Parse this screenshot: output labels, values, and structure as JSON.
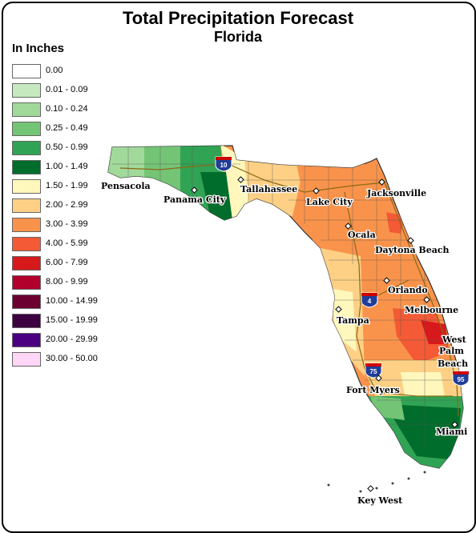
{
  "header": {
    "title": "Total Precipitation Forecast",
    "subtitle": "Florida"
  },
  "legend": {
    "units": "In Inches",
    "items": [
      {
        "label": "0.00",
        "color": "#ffffff"
      },
      {
        "label": "0.01 - 0.09",
        "color": "#c7e9c0"
      },
      {
        "label": "0.10 - 0.24",
        "color": "#a1d99b"
      },
      {
        "label": "0.25 - 0.49",
        "color": "#74c476"
      },
      {
        "label": "0.50 - 0.99",
        "color": "#31a354"
      },
      {
        "label": "1.00 - 1.49",
        "color": "#006d2c"
      },
      {
        "label": "1.50 - 1.99",
        "color": "#fff7bc"
      },
      {
        "label": "2.00 - 2.99",
        "color": "#fdd085"
      },
      {
        "label": "3.00 - 3.99",
        "color": "#f9934b"
      },
      {
        "label": "4.00 - 5.99",
        "color": "#f45a35"
      },
      {
        "label": "6.00 - 7.99",
        "color": "#d7191c"
      },
      {
        "label": "8.00 - 9.99",
        "color": "#b2002d"
      },
      {
        "label": "10.00 - 14.99",
        "color": "#6b0030"
      },
      {
        "label": "15.00 - 19.99",
        "color": "#3d0040"
      },
      {
        "label": "20.00 - 29.99",
        "color": "#4b0082"
      },
      {
        "label": "30.00 - 50.00",
        "color": "#ffd6f5"
      }
    ]
  },
  "cities": [
    {
      "name": "Pensacola"
    },
    {
      "name": "Panama City"
    },
    {
      "name": "Tallahassee"
    },
    {
      "name": "Lake City"
    },
    {
      "name": "Jacksonville"
    },
    {
      "name": "Ocala"
    },
    {
      "name": "Daytona Beach"
    },
    {
      "name": "Orlando"
    },
    {
      "name": "Melbourne"
    },
    {
      "name": "Tampa"
    },
    {
      "name": "West"
    },
    {
      "name": "Palm"
    },
    {
      "name": "Beach"
    },
    {
      "name": "Fort Myers"
    },
    {
      "name": "Miami"
    },
    {
      "name": "Key West"
    }
  ],
  "highways": [
    {
      "label": "10"
    },
    {
      "label": "4"
    },
    {
      "label": "75"
    },
    {
      "label": "95"
    }
  ]
}
